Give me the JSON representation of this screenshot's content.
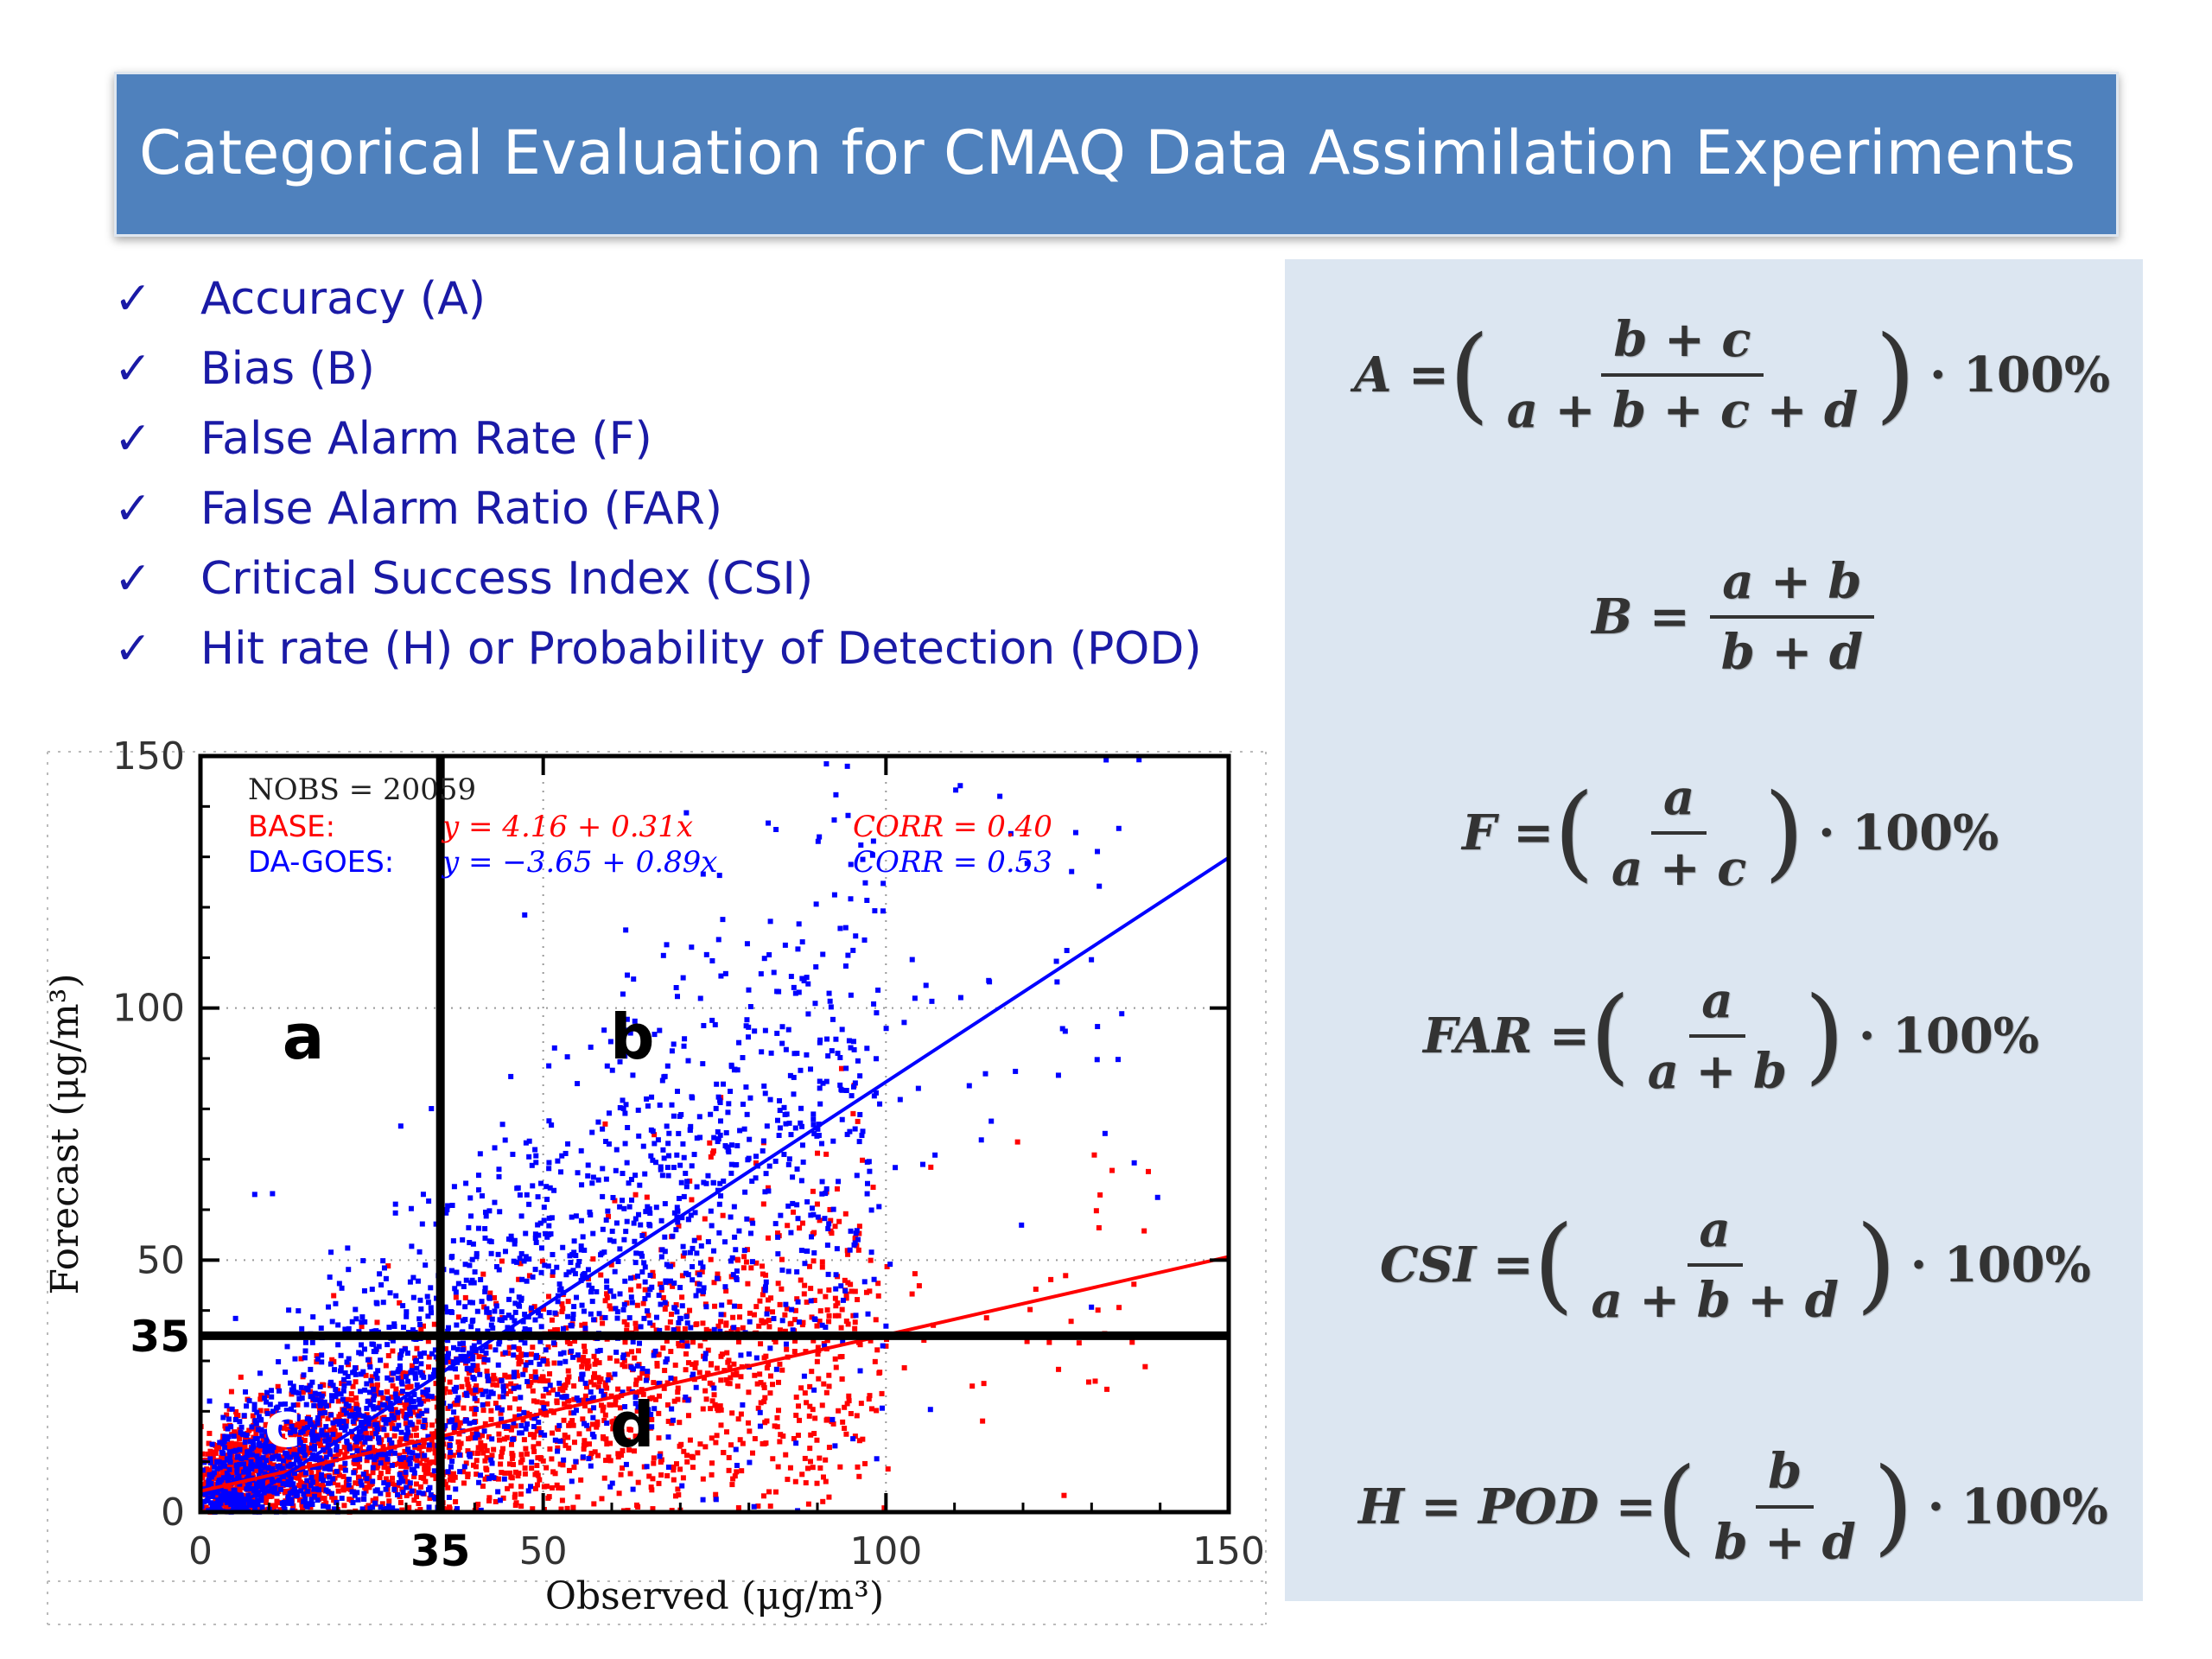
{
  "title": "Categorical Evaluation for CMAQ Data Assimilation Experiments",
  "bullets": [
    "Accuracy (A)",
    "Bias (B)",
    "False Alarm Rate (F)",
    "False Alarm Ratio (FAR)",
    "Critical Success Index (CSI)",
    "Hit rate (H) or Probability of Detection (POD)"
  ],
  "check_glyph": "✓",
  "formulas": {
    "A": {
      "lhs": "A =",
      "num": "b + c",
      "den": "a + b + c + d",
      "tail": "· 100%"
    },
    "B": {
      "lhs": "B =",
      "num": "a + b",
      "den": "b + d"
    },
    "F": {
      "lhs": "F =",
      "num": "a",
      "den": "a + c",
      "tail": "· 100%"
    },
    "FAR": {
      "lhs": "FAR =",
      "num": "a",
      "den": "a + b",
      "tail": "· 100%"
    },
    "CSI": {
      "lhs": "CSI =",
      "num": "a",
      "den": "a + b + d",
      "tail": "· 100%"
    },
    "H": {
      "lhs": "H = POD =",
      "num": "b",
      "den": "b + d",
      "tail": "· 100%"
    }
  },
  "chart_data": {
    "type": "scatter",
    "xlabel": "Observed (μg/m³)",
    "ylabel": "Forecast (μg/m³)",
    "xlim": [
      0,
      150
    ],
    "ylim": [
      0,
      150
    ],
    "xticks": [
      "0",
      "50",
      "100",
      "150"
    ],
    "yticks": [
      "0",
      "50",
      "100",
      "150"
    ],
    "xtick_values": [
      0,
      50,
      100,
      150
    ],
    "ytick_values": [
      0,
      50,
      100,
      150
    ],
    "threshold": 35,
    "threshold_label": "35",
    "quadrant_labels": [
      "a",
      "b",
      "c",
      "d"
    ],
    "stats": {
      "nobs": "NOBS = 20059",
      "rows": [
        {
          "name": "BASE:",
          "eq": "y = 4.16 + 0.31x",
          "corr": "CORR = 0.40",
          "color": "#ff0000"
        },
        {
          "name": "DA-GOES:",
          "eq": "y = −3.65 + 0.89x",
          "corr": "CORR = 0.53",
          "color": "#0000ff"
        }
      ]
    },
    "series": [
      {
        "name": "BASE",
        "color": "#ff0000",
        "intercept": 4.16,
        "slope": 0.31,
        "corr": 0.4
      },
      {
        "name": "DA-GOES",
        "color": "#0000ff",
        "intercept": -3.65,
        "slope": 0.89,
        "corr": 0.53
      }
    ],
    "grid": "dotted"
  }
}
